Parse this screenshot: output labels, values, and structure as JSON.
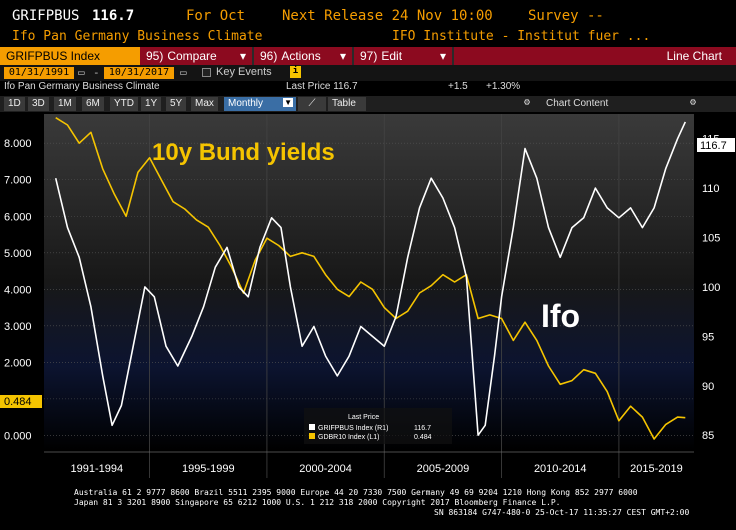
{
  "header": {
    "ticker": "GRIFPBUS",
    "price": "116.7",
    "for_label": "For Oct",
    "next_release": "Next Release 24 Nov 10:00",
    "survey": "Survey --",
    "name": "Ifo Pan Germany Business Climate",
    "source": "IFO Institute - Institut fuer ..."
  },
  "toolbar": {
    "security": "GRIFPBUS Index",
    "compare_num": "95)",
    "compare": "Compare",
    "actions_num": "96)",
    "actions": "Actions",
    "edit_num": "97)",
    "edit": "Edit",
    "chart_type": "Line Chart"
  },
  "range": {
    "start": "01/31/1991",
    "end": "10/31/2017",
    "key_events": "Key Events"
  },
  "info": {
    "name": "Ifo Pan Germany Business Climate",
    "last_price": "Last Price 116.7",
    "change": "+1.5",
    "pct": "+1.30%"
  },
  "periods": [
    "1D",
    "3D",
    "1M",
    "6M",
    "YTD",
    "1Y",
    "5Y",
    "Max"
  ],
  "freq": "Monthly",
  "table_label": "Table",
  "chart_content": "Chart Content",
  "chart_data": {
    "type": "line",
    "annotations": [
      "10y Bund yields",
      "Ifo"
    ],
    "x_ticks": [
      "1991-1994",
      "1995-1999",
      "2000-2004",
      "2005-2009",
      "2010-2014",
      "2015-2019"
    ],
    "left_axis": {
      "ticks": [
        "8.000",
        "7.000",
        "6.000",
        "5.000",
        "4.000",
        "3.000",
        "2.000",
        "1.000",
        "0.000"
      ],
      "ylim": [
        -0.4,
        8.8
      ],
      "last_value": "0.484"
    },
    "right_axis": {
      "ticks": [
        "115",
        "110",
        "105",
        "100",
        "95",
        "90",
        "85"
      ],
      "ylim": [
        83.5,
        117.5
      ],
      "last_value": "116.7"
    },
    "legend": {
      "title": "Last Price",
      "entries": [
        {
          "label": "GRIFPBUS Index  (R1)",
          "value": "116.7",
          "color": "#ffffff"
        },
        {
          "label": "GDBR10 Index  (L1)",
          "value": "0.484",
          "color": "#f5c400"
        }
      ]
    },
    "series": [
      {
        "name": "GDBR10 Index",
        "axis": "left",
        "color": "#f5c400",
        "x": [
          1991.0,
          1991.5,
          1992.0,
          1992.5,
          1993.0,
          1993.5,
          1994.0,
          1994.5,
          1995.0,
          1995.5,
          1996.0,
          1996.5,
          1997.0,
          1997.5,
          1998.0,
          1998.5,
          1999.0,
          1999.5,
          2000.0,
          2000.5,
          2001.0,
          2001.5,
          2002.0,
          2002.5,
          2003.0,
          2003.5,
          2004.0,
          2004.5,
          2005.0,
          2005.5,
          2006.0,
          2006.5,
          2007.0,
          2007.5,
          2008.0,
          2008.5,
          2009.0,
          2009.5,
          2010.0,
          2010.5,
          2011.0,
          2011.5,
          2012.0,
          2012.5,
          2013.0,
          2013.5,
          2014.0,
          2014.5,
          2015.0,
          2015.5,
          2016.0,
          2016.5,
          2017.0,
          2017.5,
          2017.83
        ],
        "values": [
          8.7,
          8.5,
          8.0,
          8.3,
          7.3,
          6.6,
          6.0,
          7.2,
          7.6,
          7.0,
          6.4,
          6.2,
          5.9,
          5.7,
          5.2,
          4.6,
          3.9,
          4.8,
          5.4,
          5.2,
          4.9,
          5.0,
          4.9,
          4.4,
          4.0,
          3.8,
          4.2,
          4.0,
          3.5,
          3.2,
          3.4,
          3.9,
          4.1,
          4.4,
          4.2,
          4.4,
          3.2,
          3.3,
          3.2,
          2.6,
          3.1,
          2.6,
          1.9,
          1.4,
          1.5,
          1.8,
          1.7,
          1.2,
          0.4,
          0.8,
          0.5,
          -0.1,
          0.3,
          0.5,
          0.484
        ]
      },
      {
        "name": "GRIFPBUS Index",
        "axis": "right",
        "color": "#ffffff",
        "x": [
          1991.0,
          1991.5,
          1992.0,
          1992.5,
          1993.0,
          1993.4,
          1993.8,
          1994.3,
          1994.8,
          1995.2,
          1995.7,
          1996.2,
          1996.8,
          1997.3,
          1997.8,
          1998.3,
          1998.8,
          1999.2,
          1999.7,
          2000.2,
          2000.6,
          2001.0,
          2001.5,
          2002.0,
          2002.5,
          2003.0,
          2003.5,
          2004.0,
          2004.5,
          2005.0,
          2005.5,
          2006.0,
          2006.5,
          2007.0,
          2007.5,
          2008.0,
          2008.5,
          2009.0,
          2009.3,
          2009.7,
          2010.0,
          2010.5,
          2011.0,
          2011.5,
          2012.0,
          2012.5,
          2013.0,
          2013.5,
          2014.0,
          2014.5,
          2015.0,
          2015.5,
          2016.0,
          2016.5,
          2017.0,
          2017.5,
          2017.83
        ],
        "values": [
          111,
          106,
          103,
          98,
          91,
          86,
          88,
          94,
          100,
          99,
          94,
          92,
          95,
          98,
          102,
          104,
          100,
          99,
          104,
          107,
          106,
          100,
          94,
          96,
          93,
          91,
          93,
          96,
          95,
          94,
          97,
          103,
          108,
          111,
          109,
          106,
          101,
          85,
          86,
          93,
          99,
          106,
          114,
          111,
          106,
          103,
          106,
          107,
          110,
          108,
          107,
          108,
          106,
          108,
          112,
          115,
          116.7
        ]
      }
    ]
  },
  "footer": {
    "line1": "Australia 61 2 9777 8600 Brazil 5511 2395 9000 Europe 44 20 7330 7500 Germany 49 69 9204 1210 Hong Kong 852 2977 6000",
    "line2": "Japan 81 3 3201 8900       Singapore 65 6212 1000      U.S. 1 212 318 2000                 Copyright 2017 Bloomberg Finance L.P.",
    "line3": "SN 863184 G747-480-0 25-Oct-17 11:35:27 CEST GMT+2:00"
  },
  "colors": {
    "amber": "#f59d00",
    "toolbar_red": "#8c0a1f",
    "bund": "#f5c400",
    "ifo": "#ffffff"
  }
}
